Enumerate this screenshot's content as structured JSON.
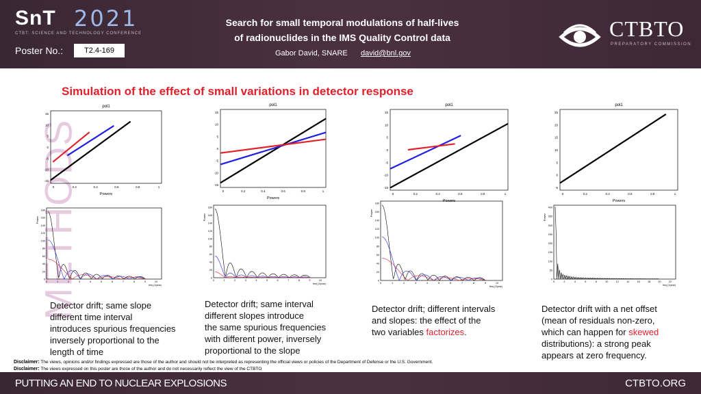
{
  "header": {
    "logo_text": "SnT",
    "logo_year": "2021",
    "logo_subtitle": "CTBT: SCIENCE AND TECHNOLOGY CONFERENCE",
    "poster_label": "Poster No.:",
    "poster_number": "T2.4-169",
    "title_line1": "Search for small temporal modulations of half-lives",
    "title_line2": "of radionuclides in the IMS Quality Control data",
    "author": "Gabor David, SNARE",
    "email": "david@bnl.gov",
    "org_name": "CTBTO",
    "org_subtitle": "PREPARATORY COMMISSION"
  },
  "section": {
    "title": "Simulation of the effect of small variations in detector response",
    "side_label": "METHODS"
  },
  "plot_text": {
    "fit_title": "pol1",
    "powers_label": "Powers",
    "power_axis": "Power",
    "freq_axis": "freq (1/year)"
  },
  "panels": [
    {
      "caption_lines": [
        "Detector drift; same slope",
        "different  time  interval",
        "introduces spurious frequencies",
        "inversely proportional to the",
        "length of time"
      ],
      "top_yticks": [
        "15",
        "10",
        "5",
        "0",
        "-5",
        "-10",
        "-15"
      ],
      "top_xticks": [
        "0",
        "0.2",
        "0.4",
        "0.6",
        "0.8",
        "1"
      ],
      "bottom_yticks": [
        "180",
        "160",
        "140",
        "120",
        "100",
        "80",
        "60",
        "40",
        "20",
        "0"
      ],
      "bottom_xticks": [
        "0",
        "1",
        "2",
        "3",
        "4",
        "5",
        "6",
        "7",
        "8",
        "9",
        "10"
      ]
    },
    {
      "caption_lines": [
        "Detector drift; same interval",
        "different slopes introduce",
        "the same spurious frequencies",
        "with different power, inversely",
        "proportional to the slope"
      ],
      "top_yticks": [
        "15",
        "10",
        "5",
        "0",
        "-5",
        "-10",
        "-15"
      ],
      "top_xticks": [
        "0",
        "0.2",
        "0.4",
        "0.6",
        "0.8",
        "1"
      ],
      "bottom_yticks": [
        "180",
        "160",
        "140",
        "120",
        "100",
        "80",
        "60",
        "40",
        "20",
        "0"
      ],
      "bottom_xticks": [
        "0",
        "1",
        "2",
        "3",
        "4",
        "5",
        "6",
        "7",
        "8",
        "9",
        "10"
      ]
    },
    {
      "caption_lines": [
        "Detector drift; different intervals",
        "and slopes: the effect of the"
      ],
      "caption_last_prefix": "two variables ",
      "caption_last_highlight": "factorizes",
      "caption_last_suffix": ".",
      "top_yticks": [
        "15",
        "10",
        "5",
        "0",
        "-5",
        "-10",
        "-15"
      ],
      "top_xticks": [
        "0",
        "0.2",
        "0.4",
        "0.6",
        "0.8",
        "1"
      ],
      "bottom_yticks": [
        "180",
        "160",
        "140",
        "120",
        "100",
        "80",
        "60",
        "40",
        "20",
        "0"
      ],
      "bottom_xticks": [
        "0",
        "1",
        "2",
        "3",
        "4",
        "5",
        "6",
        "7",
        "8",
        "9",
        "10"
      ]
    },
    {
      "caption_lines": [
        "Detector drift with a net offset",
        "(mean of residuals non-zero,"
      ],
      "caption_mid_prefix": "which can happen for ",
      "caption_mid_highlight": "skewed",
      "caption_tail": [
        "distributions): a strong peak",
        "appears at zero frequency."
      ],
      "top_yticks": [
        "25",
        "20",
        "15",
        "10",
        "5",
        "0",
        "-5"
      ],
      "top_xticks": [
        "0",
        "0.2",
        "0.4",
        "0.6",
        "0.8",
        "1"
      ],
      "bottom_yticks": [
        "400",
        "350",
        "300",
        "250",
        "200",
        "150",
        "100",
        "50",
        "0"
      ],
      "bottom_xticks": [
        "0",
        "2",
        "4",
        "6",
        "8",
        "10",
        "12",
        "14",
        "16",
        "18",
        "20",
        "22"
      ]
    }
  ],
  "disclaimers": [
    {
      "label": "Disclaimer:",
      "text": "The views, opinions and/or findings expressed are those of the author and should not be interpreted as representing the official views or policies of the Department of Defense or the U.S. Government."
    },
    {
      "label": "Disclaimer:",
      "text": "The views expressed on this poster are those of the author and do not necessarily reflect the view of the CTBTO"
    }
  ],
  "footer": {
    "left": "PUTTING AN END TO NUCLEAR EXPLOSIONS",
    "right": "CTBTO.ORG"
  },
  "colors": {
    "accent": "#e0202a",
    "header_bg": "#3f2a38",
    "series_black": "#000000",
    "series_blue": "#1f1fe0",
    "series_red": "#e0202a"
  }
}
